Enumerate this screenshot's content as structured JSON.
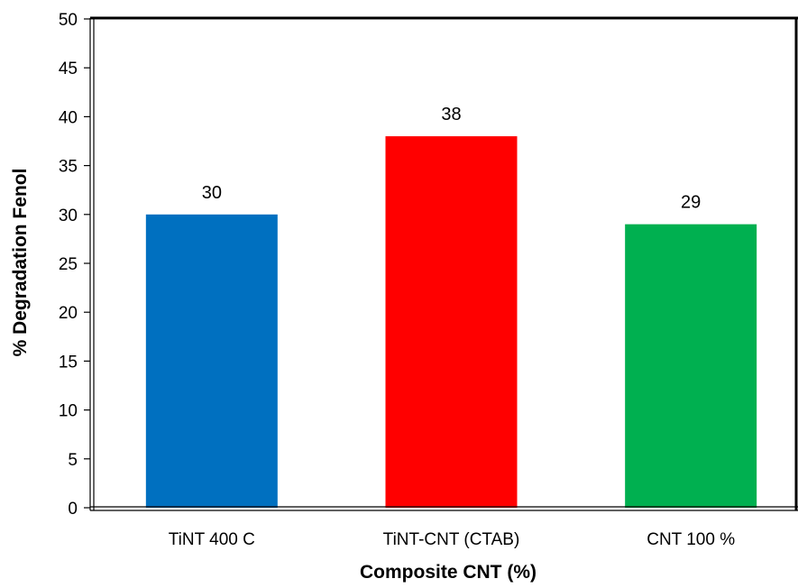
{
  "chart_data": {
    "type": "bar",
    "categories": [
      "TiNT 400 C",
      "TiNT-CNT (CTAB)",
      "CNT 100 %"
    ],
    "values": [
      30,
      38,
      29
    ],
    "data_labels": [
      "30",
      "38",
      "29"
    ],
    "bar_colors": [
      "#0070c0",
      "#ff0000",
      "#00b050"
    ],
    "title": "",
    "xlabel": "Composite CNT (%)",
    "ylabel": "% Degradation Fenol",
    "ylim": [
      0,
      50
    ],
    "yticks": [
      0,
      5,
      10,
      15,
      20,
      25,
      30,
      35,
      40,
      45,
      50
    ],
    "ytick_labels": [
      "0",
      "5",
      "10",
      "15",
      "20",
      "25",
      "30",
      "35",
      "40",
      "45",
      "50"
    ],
    "grid": false,
    "legend": "none"
  }
}
